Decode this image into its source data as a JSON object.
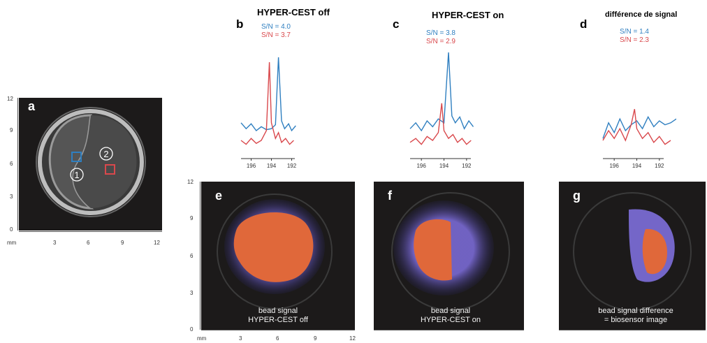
{
  "panels": {
    "a": {
      "label": "a",
      "region1": "1",
      "region2": "2"
    },
    "b": {
      "label": "b",
      "title": "HYPER-CEST off",
      "sn_blue": "S/N = 4.0",
      "sn_red": "S/N = 3.7",
      "ticks": [
        "196",
        "194",
        "192"
      ]
    },
    "c": {
      "label": "c",
      "title": "HYPER-CEST on",
      "sn_blue": "S/N = 3.8",
      "sn_red": "S/N = 2.9",
      "ticks": [
        "196",
        "194",
        "192"
      ]
    },
    "d": {
      "label": "d",
      "title": "différence de signal",
      "sn_blue": "S/N = 1.4",
      "sn_red": "S/N = 2.3",
      "ticks": [
        "196",
        "194",
        "192"
      ]
    },
    "e": {
      "label": "e",
      "caption1": "bead signal",
      "caption2": "HYPER-CEST off"
    },
    "f": {
      "label": "f",
      "caption1": "bead signal",
      "caption2": "HYPER-CEST on"
    },
    "g": {
      "label": "g",
      "caption1": "bead signal difference",
      "caption2": "= biosensor image"
    }
  },
  "axes": {
    "unit": "mm",
    "y_ticks": [
      "12",
      "9",
      "6",
      "3",
      "0"
    ],
    "x_ticks": [
      "3",
      "6",
      "9",
      "12"
    ]
  },
  "colors": {
    "blue": "#2f7fc0",
    "red": "#d9484c",
    "image_bg": "#1c1a1a",
    "signal_core": "#e0683a",
    "signal_halo": "#7466c8"
  },
  "chart_data": [
    {
      "type": "line",
      "panel": "b",
      "title": "HYPER-CEST off",
      "xlabel": "",
      "ylabel": "",
      "x_ticks": [
        196,
        194,
        192
      ],
      "x_reversed": true,
      "series": [
        {
          "color": "#2f7fc0",
          "x": [
            197,
            196.5,
            196,
            195.5,
            195,
            194.5,
            194,
            193.6,
            193.3,
            193,
            192.7,
            192.3,
            192,
            191.6
          ],
          "values": [
            0.28,
            0.22,
            0.27,
            0.2,
            0.24,
            0.21,
            0.22,
            0.26,
            0.95,
            0.3,
            0.22,
            0.27,
            0.2,
            0.25
          ]
        },
        {
          "color": "#d9484c",
          "x": [
            197,
            196.5,
            196,
            195.5,
            195,
            194.5,
            194.2,
            194,
            193.6,
            193.3,
            193,
            192.6,
            192.2,
            191.8
          ],
          "values": [
            0.1,
            0.06,
            0.12,
            0.07,
            0.1,
            0.2,
            0.9,
            0.28,
            0.12,
            0.18,
            0.08,
            0.12,
            0.06,
            0.1
          ]
        }
      ]
    },
    {
      "type": "line",
      "panel": "c",
      "title": "HYPER-CEST on",
      "xlabel": "",
      "ylabel": "",
      "x_ticks": [
        196,
        194,
        192
      ],
      "x_reversed": true,
      "series": [
        {
          "color": "#2f7fc0",
          "x": [
            197,
            196.5,
            196,
            195.5,
            195,
            194.5,
            194,
            193.6,
            193.3,
            193,
            192.6,
            192.2,
            191.8,
            191.4
          ],
          "values": [
            0.22,
            0.28,
            0.2,
            0.3,
            0.24,
            0.32,
            0.28,
            1.0,
            0.35,
            0.28,
            0.34,
            0.22,
            0.3,
            0.24
          ]
        },
        {
          "color": "#d9484c",
          "x": [
            197,
            196.5,
            196,
            195.5,
            195,
            194.5,
            194.2,
            194,
            193.6,
            193.2,
            192.8,
            192.4,
            192,
            191.6
          ],
          "values": [
            0.08,
            0.12,
            0.06,
            0.14,
            0.1,
            0.18,
            0.48,
            0.2,
            0.12,
            0.16,
            0.08,
            0.12,
            0.06,
            0.1
          ]
        }
      ]
    },
    {
      "type": "line",
      "panel": "d",
      "title": "différence de signal",
      "xlabel": "",
      "ylabel": "",
      "x_ticks": [
        196,
        194,
        192
      ],
      "x_reversed": true,
      "series": [
        {
          "color": "#2f7fc0",
          "x": [
            197,
            196.5,
            196,
            195.5,
            195,
            194.5,
            194,
            193.5,
            193,
            192.5,
            192,
            191.5,
            191,
            190.5
          ],
          "values": [
            0.12,
            0.28,
            0.18,
            0.32,
            0.2,
            0.26,
            0.3,
            0.22,
            0.34,
            0.24,
            0.3,
            0.26,
            0.28,
            0.32
          ]
        },
        {
          "color": "#d9484c",
          "x": [
            197,
            196.5,
            196,
            195.5,
            195,
            194.5,
            194.2,
            194,
            193.5,
            193,
            192.5,
            192,
            191.5,
            191
          ],
          "values": [
            0.1,
            0.2,
            0.12,
            0.22,
            0.1,
            0.26,
            0.42,
            0.22,
            0.12,
            0.18,
            0.08,
            0.14,
            0.06,
            0.1
          ]
        }
      ]
    }
  ]
}
